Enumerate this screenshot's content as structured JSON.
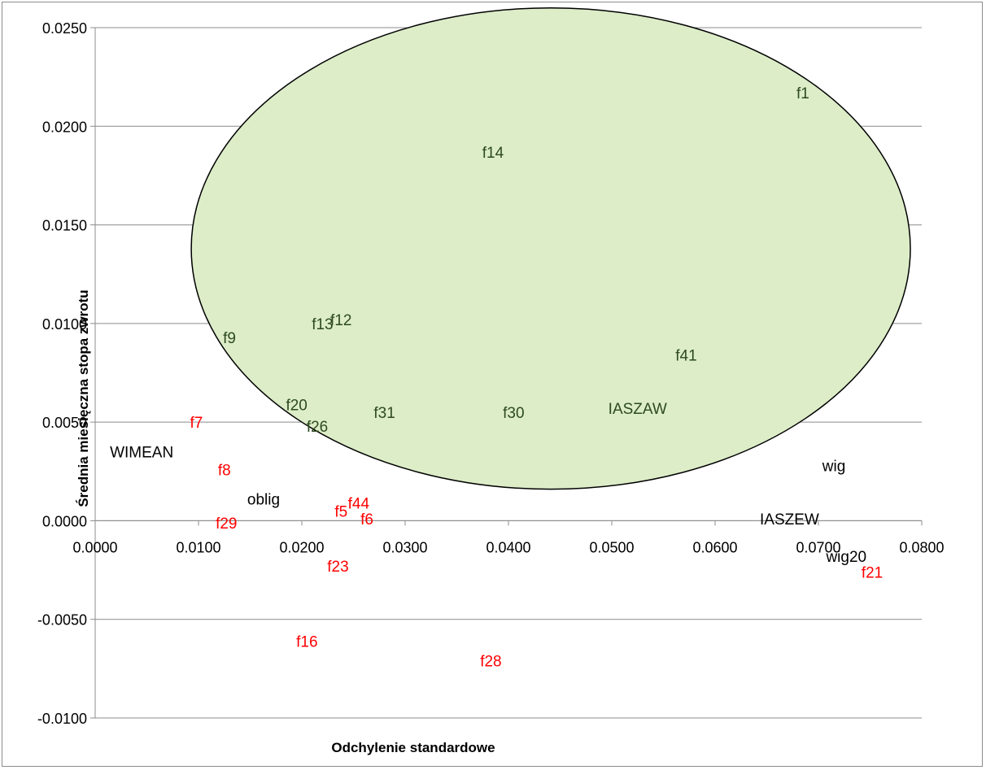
{
  "chart_data": {
    "type": "scatter",
    "title": "",
    "xlabel": "Odchylenie standardowe",
    "ylabel": "Średnia miesięczna stopa zwrotu",
    "xlim": [
      0.0,
      0.08
    ],
    "ylim": [
      -0.01,
      0.025
    ],
    "x_ticks": [
      "0.0000",
      "0.0100",
      "0.0200",
      "0.0300",
      "0.0400",
      "0.0500",
      "0.0600",
      "0.0700",
      "0.0800"
    ],
    "y_ticks": [
      "0.0250",
      "0.0200",
      "0.0150",
      "0.0100",
      "0.0050",
      "0.0000",
      "-0.0050",
      "-0.0100"
    ],
    "x_tick_values": [
      0.0,
      0.01,
      0.02,
      0.03,
      0.04,
      0.05,
      0.06,
      0.07,
      0.08
    ],
    "y_tick_values": [
      0.025,
      0.02,
      0.015,
      0.01,
      0.005,
      0.0,
      -0.005,
      -0.01
    ],
    "grid": "horizontal",
    "legend": "none",
    "colors": {
      "green_label": "#2e4a1e",
      "red_label": "#ff0000",
      "black_label": "#000000",
      "ellipse_fill": "#dcedc8",
      "ellipse_stroke": "#000000",
      "grid": "#8c8c8c"
    },
    "highlight_ellipse": {
      "cx": 0.0441,
      "cy": 0.0138,
      "rx": 0.0348,
      "ry": 0.0122
    },
    "points": [
      {
        "label": "f1",
        "x": 0.0685,
        "y": 0.0217,
        "group": "green"
      },
      {
        "label": "f14",
        "x": 0.0385,
        "y": 0.0187,
        "group": "green"
      },
      {
        "label": "f12",
        "x": 0.0238,
        "y": 0.0102,
        "group": "green"
      },
      {
        "label": "f13",
        "x": 0.022,
        "y": 0.01,
        "group": "green"
      },
      {
        "label": "f9",
        "x": 0.013,
        "y": 0.0093,
        "group": "green"
      },
      {
        "label": "f41",
        "x": 0.0572,
        "y": 0.0084,
        "group": "green"
      },
      {
        "label": "f20",
        "x": 0.0195,
        "y": 0.0059,
        "group": "green"
      },
      {
        "label": "f26",
        "x": 0.0215,
        "y": 0.0048,
        "group": "green"
      },
      {
        "label": "f31",
        "x": 0.028,
        "y": 0.0055,
        "group": "green"
      },
      {
        "label": "f30",
        "x": 0.0405,
        "y": 0.0055,
        "group": "green"
      },
      {
        "label": "IASZAW",
        "x": 0.0525,
        "y": 0.0057,
        "group": "green"
      },
      {
        "label": "f7",
        "x": 0.0098,
        "y": 0.005,
        "group": "red"
      },
      {
        "label": "WIMEAN",
        "x": 0.0045,
        "y": 0.0035,
        "group": "black"
      },
      {
        "label": "f8",
        "x": 0.0125,
        "y": 0.0026,
        "group": "red"
      },
      {
        "label": "wig",
        "x": 0.0715,
        "y": 0.0028,
        "group": "black"
      },
      {
        "label": "oblig",
        "x": 0.0163,
        "y": 0.0011,
        "group": "black"
      },
      {
        "label": "f44",
        "x": 0.0255,
        "y": 0.0009,
        "group": "red"
      },
      {
        "label": "f5",
        "x": 0.0238,
        "y": 0.0005,
        "group": "red"
      },
      {
        "label": "f6",
        "x": 0.0263,
        "y": 0.0001,
        "group": "red"
      },
      {
        "label": "f29",
        "x": 0.0127,
        "y": -0.0001,
        "group": "red"
      },
      {
        "label": "IASZEW",
        "x": 0.0672,
        "y": 0.0001,
        "group": "black"
      },
      {
        "label": "wig20",
        "x": 0.0727,
        "y": -0.0018,
        "group": "black"
      },
      {
        "label": "f21",
        "x": 0.0752,
        "y": -0.0026,
        "group": "red"
      },
      {
        "label": "f23",
        "x": 0.0235,
        "y": -0.0023,
        "group": "red"
      },
      {
        "label": "f16",
        "x": 0.0205,
        "y": -0.0061,
        "group": "red"
      },
      {
        "label": "f28",
        "x": 0.0383,
        "y": -0.0071,
        "group": "red"
      }
    ]
  }
}
